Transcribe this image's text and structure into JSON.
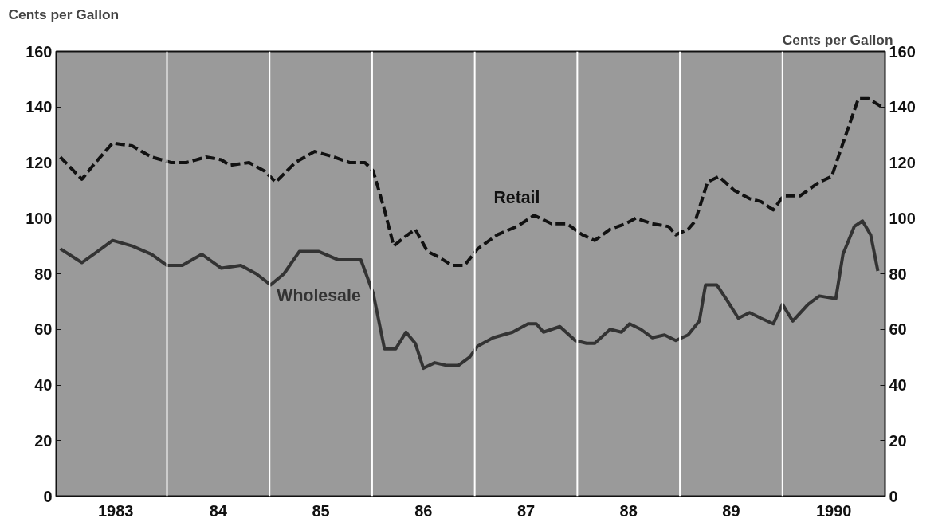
{
  "chart_data": {
    "type": "line",
    "ylabel": "Cents per Gallon",
    "y2label": "Cents per Gallon",
    "xlim": [
      1982.42,
      1990.5
    ],
    "xticks": [
      {
        "value": 1983,
        "label": "1983"
      },
      {
        "value": 1984,
        "label": "84"
      },
      {
        "value": 1985,
        "label": "85"
      },
      {
        "value": 1986,
        "label": "86"
      },
      {
        "value": 1987,
        "label": "87"
      },
      {
        "value": 1988,
        "label": "88"
      },
      {
        "value": 1989,
        "label": "89"
      },
      {
        "value": 1990,
        "label": "1990"
      }
    ],
    "ylim": [
      0,
      160
    ],
    "yticks": [
      0,
      20,
      40,
      60,
      80,
      100,
      120,
      140,
      160
    ],
    "y2lim": [
      0,
      160
    ],
    "y2ticks": [
      0,
      20,
      40,
      60,
      80,
      100,
      120,
      140,
      160
    ],
    "grid": false,
    "ref_lines": [
      {
        "axis": "x",
        "value": 1983.5,
        "color": "#ffffff"
      },
      {
        "axis": "x",
        "value": 1984.5,
        "color": "#ffffff"
      },
      {
        "axis": "x",
        "value": 1985.5,
        "color": "#ffffff"
      },
      {
        "axis": "x",
        "value": 1986.5,
        "color": "#ffffff"
      },
      {
        "axis": "x",
        "value": 1987.5,
        "color": "#ffffff"
      },
      {
        "axis": "x",
        "value": 1988.5,
        "color": "#ffffff"
      },
      {
        "axis": "x",
        "value": 1989.5,
        "color": "#ffffff"
      }
    ],
    "series": [
      {
        "name": "Retail",
        "color": "#111111",
        "line_style": "dashed",
        "x": [
          1982.46,
          1982.67,
          1982.78,
          1982.97,
          1983.16,
          1983.35,
          1983.54,
          1983.69,
          1983.88,
          1984.03,
          1984.11,
          1984.3,
          1984.45,
          1984.56,
          1984.75,
          1984.94,
          1985.13,
          1985.28,
          1985.43,
          1985.51,
          1985.62,
          1985.71,
          1985.81,
          1985.92,
          1986.04,
          1986.15,
          1986.28,
          1986.4,
          1986.53,
          1986.72,
          1986.91,
          1987.08,
          1987.25,
          1987.4,
          1987.55,
          1987.67,
          1987.82,
          1987.97,
          1988.07,
          1988.23,
          1988.39,
          1988.46,
          1988.58,
          1988.65,
          1988.77,
          1988.88,
          1989.03,
          1989.18,
          1989.29,
          1989.41,
          1989.51,
          1989.67,
          1989.86,
          1989.98,
          1990.09,
          1990.24,
          1990.34,
          1990.47
        ],
        "values": [
          122,
          114,
          119,
          127,
          126,
          122,
          120,
          120,
          122,
          121,
          119,
          120,
          117,
          113,
          120,
          124,
          122,
          120,
          120,
          117,
          103,
          90,
          93,
          96,
          88,
          86,
          83,
          83,
          89,
          94,
          97,
          101,
          98,
          98,
          94,
          92,
          96,
          98,
          100,
          98,
          97,
          94,
          96,
          99,
          113,
          115,
          110,
          107,
          106,
          103,
          108,
          108,
          113,
          115,
          127,
          143,
          143,
          140
        ]
      },
      {
        "name": "Wholesale",
        "color": "#333333",
        "line_style": "solid",
        "x": [
          1982.46,
          1982.67,
          1982.86,
          1982.97,
          1983.16,
          1983.35,
          1983.5,
          1983.65,
          1983.84,
          1984.03,
          1984.22,
          1984.37,
          1984.51,
          1984.64,
          1984.79,
          1984.98,
          1985.17,
          1985.28,
          1985.39,
          1985.51,
          1985.62,
          1985.73,
          1985.83,
          1985.92,
          1986.0,
          1986.11,
          1986.23,
          1986.34,
          1986.45,
          1986.53,
          1986.68,
          1986.87,
          1987.02,
          1987.1,
          1987.17,
          1987.33,
          1987.48,
          1987.59,
          1987.67,
          1987.82,
          1987.93,
          1988.01,
          1988.12,
          1988.23,
          1988.35,
          1988.46,
          1988.58,
          1988.69,
          1988.75,
          1988.86,
          1988.95,
          1989.07,
          1989.18,
          1989.29,
          1989.41,
          1989.5,
          1989.6,
          1989.75,
          1989.86,
          1990.02,
          1990.09,
          1990.2,
          1990.28,
          1990.36,
          1990.43
        ],
        "values": [
          89,
          84,
          89,
          92,
          90,
          87,
          83,
          83,
          87,
          82,
          83,
          80,
          76,
          80,
          88,
          88,
          85,
          85,
          85,
          73,
          53,
          53,
          59,
          55,
          46,
          48,
          47,
          47,
          50,
          54,
          57,
          59,
          62,
          62,
          59,
          61,
          56,
          55,
          55,
          60,
          59,
          62,
          60,
          57,
          58,
          56,
          58,
          63,
          76,
          76,
          71,
          64,
          66,
          64,
          62,
          69,
          63,
          69,
          72,
          71,
          87,
          97,
          99,
          94,
          81
        ]
      }
    ]
  }
}
